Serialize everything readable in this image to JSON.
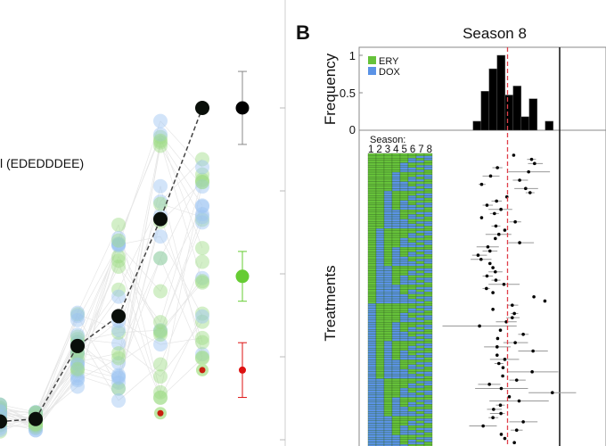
{
  "panel_a": {
    "annotation": "l (EDEDDDEE)",
    "chart_data": {
      "type": "scatter",
      "x_categories": 7,
      "highlighted_path": [
        0.22,
        0.25,
        1.13,
        1.49,
        2.66,
        4.0
      ],
      "clouds": [
        {
          "col": 0,
          "min": 0.1,
          "max": 0.45
        },
        {
          "col": 1,
          "min": 0.1,
          "max": 0.35
        },
        {
          "col": 2,
          "min": 0.45,
          "max": 1.6
        },
        {
          "col": 3,
          "min": 0.45,
          "max": 2.6
        },
        {
          "col": 4,
          "min": 0.5,
          "max": 3.95
        },
        {
          "col": 5,
          "min": 0.9,
          "max": 3.4
        }
      ],
      "red_points": [
        {
          "col": 4,
          "y": 0.32
        },
        {
          "col": 5,
          "y": 0.84
        }
      ],
      "summary": [
        {
          "color": "#000000",
          "y": 4.0,
          "lo": 3.56,
          "hi": 4.44
        },
        {
          "color": "#66cc33",
          "y": 1.97,
          "lo": 1.67,
          "hi": 2.27
        },
        {
          "color": "#dd1111",
          "y": 0.84,
          "lo": 0.51,
          "hi": 1.17
        }
      ],
      "y_gridlines": [
        0,
        1,
        2,
        3,
        4
      ],
      "colors": {
        "dox": "#9cc3f2",
        "ery": "#9ddc86",
        "path": "#444444"
      }
    }
  },
  "panel_b": {
    "label": "B",
    "title": "Season 8",
    "histogram": {
      "type": "bar",
      "ylabel": "Frequency",
      "yticks": [
        "1",
        "0.5",
        "0"
      ],
      "ylim": [
        0,
        1
      ],
      "bins": [
        0,
        1,
        2,
        3,
        4,
        5,
        6,
        7,
        8,
        9
      ],
      "values": [
        0.12,
        0.52,
        0.82,
        1.0,
        0.47,
        0.59,
        0.18,
        0.42,
        0,
        0.12
      ],
      "xlim": [
        -14.2,
        10.8
      ],
      "reference_line": 4.3,
      "legend": [
        {
          "label": "ERY",
          "color": "#66c23a"
        },
        {
          "label": "DOX",
          "color": "#5b93e6"
        }
      ]
    },
    "treatments": {
      "ylabel": "Treatments",
      "season_label": "Season:",
      "season_numbers": "12345678",
      "rows": 128,
      "columns": 8
    },
    "forest": [
      [
        5.07,
        null,
        null
      ],
      [
        7.3,
        6.74,
        7.85
      ],
      [
        7.67,
        6.85,
        8.7
      ],
      [
        3.04,
        2.41,
        3.67
      ],
      [
        6.93,
        4.41,
        9.59
      ],
      [
        2.19,
        1.19,
        3.3
      ],
      [
        5.81,
        4.96,
        6.85
      ],
      [
        1.07,
        0.7,
        1.56
      ],
      [
        6.56,
        5.15,
        8.11
      ],
      [
        7.11,
        6.56,
        7.67
      ],
      [
        4.22,
        null,
        null
      ],
      [
        2.93,
        2.3,
        3.59
      ],
      [
        1.74,
        1.19,
        2.48
      ],
      [
        3.48,
        1.93,
        4.89
      ],
      [
        2.67,
        2.11,
        3.22
      ],
      [
        1.07,
        null,
        null
      ],
      [
        5.26,
        4.52,
        6.0
      ],
      [
        2.85,
        2.3,
        3.41
      ],
      [
        3.96,
        null,
        null
      ],
      [
        3.22,
        1.56,
        4.78
      ],
      [
        2.78,
        null,
        null
      ],
      [
        5.81,
        4.41,
        7.59
      ],
      [
        1.85,
        0.44,
        3.22
      ],
      [
        2.11,
        1.19,
        3.04
      ],
      [
        0.63,
        -0.11,
        1.74
      ],
      [
        1.0,
        -0.3,
        2.3
      ],
      [
        2.11,
        null,
        null
      ],
      [
        2.48,
        null,
        null
      ],
      [
        2.78,
        1.93,
        3.67
      ],
      [
        1.74,
        1.19,
        2.48
      ],
      [
        2.85,
        2.3,
        3.41
      ],
      [
        3.85,
        1.93,
        5.81
      ],
      [
        1.67,
        1.19,
        2.11
      ],
      [
        2.48,
        null,
        null
      ],
      [
        7.59,
        null,
        null
      ],
      [
        8.96,
        null,
        null
      ],
      [
        4.89,
        4.33,
        5.63
      ],
      [
        2.48,
        null,
        null
      ],
      [
        5.15,
        4.7,
        5.63
      ],
      [
        4.89,
        4.15,
        5.81
      ],
      [
        4.15,
        2.85,
        5.44
      ],
      [
        0.81,
        -3.81,
        5.44
      ],
      [
        3.41,
        null,
        null
      ],
      [
        6.26,
        5.63,
        6.93
      ],
      [
        3.07,
        null,
        null
      ],
      [
        5.26,
        3.78,
        6.85
      ],
      [
        3.0,
        1.37,
        4.7
      ],
      [
        7.48,
        5.63,
        9.33
      ],
      [
        3.0,
        null,
        null
      ],
      [
        3.96,
        2.11,
        5.74
      ],
      [
        3.22,
        2.67,
        3.78
      ],
      [
        3.74,
        null,
        null
      ],
      [
        7.37,
        4.33,
        10.63
      ],
      [
        3.7,
        null,
        null
      ],
      [
        5.44,
        4.52,
        6.56
      ],
      [
        2.04,
        0.63,
        3.41
      ],
      [
        3.52,
        0.26,
        6.85
      ],
      [
        9.89,
        6.93,
        12.85
      ],
      [
        4.52,
        null,
        null
      ],
      [
        5.74,
        2.04,
        9.44
      ],
      [
        3.41,
        2.85,
        3.96
      ],
      [
        2.56,
        1.74,
        3.59
      ],
      [
        3.48,
        2.11,
        3.96
      ],
      [
        2.48,
        1.93,
        3.15
      ],
      [
        6.26,
        4.52,
        8.04
      ],
      [
        1.26,
        -0.48,
        2.96
      ],
      [
        5.44,
        4.7,
        6.19
      ],
      [
        3.52,
        null,
        null
      ],
      [
        3.96,
        null,
        null
      ],
      [
        5.15,
        null,
        null
      ]
    ]
  }
}
